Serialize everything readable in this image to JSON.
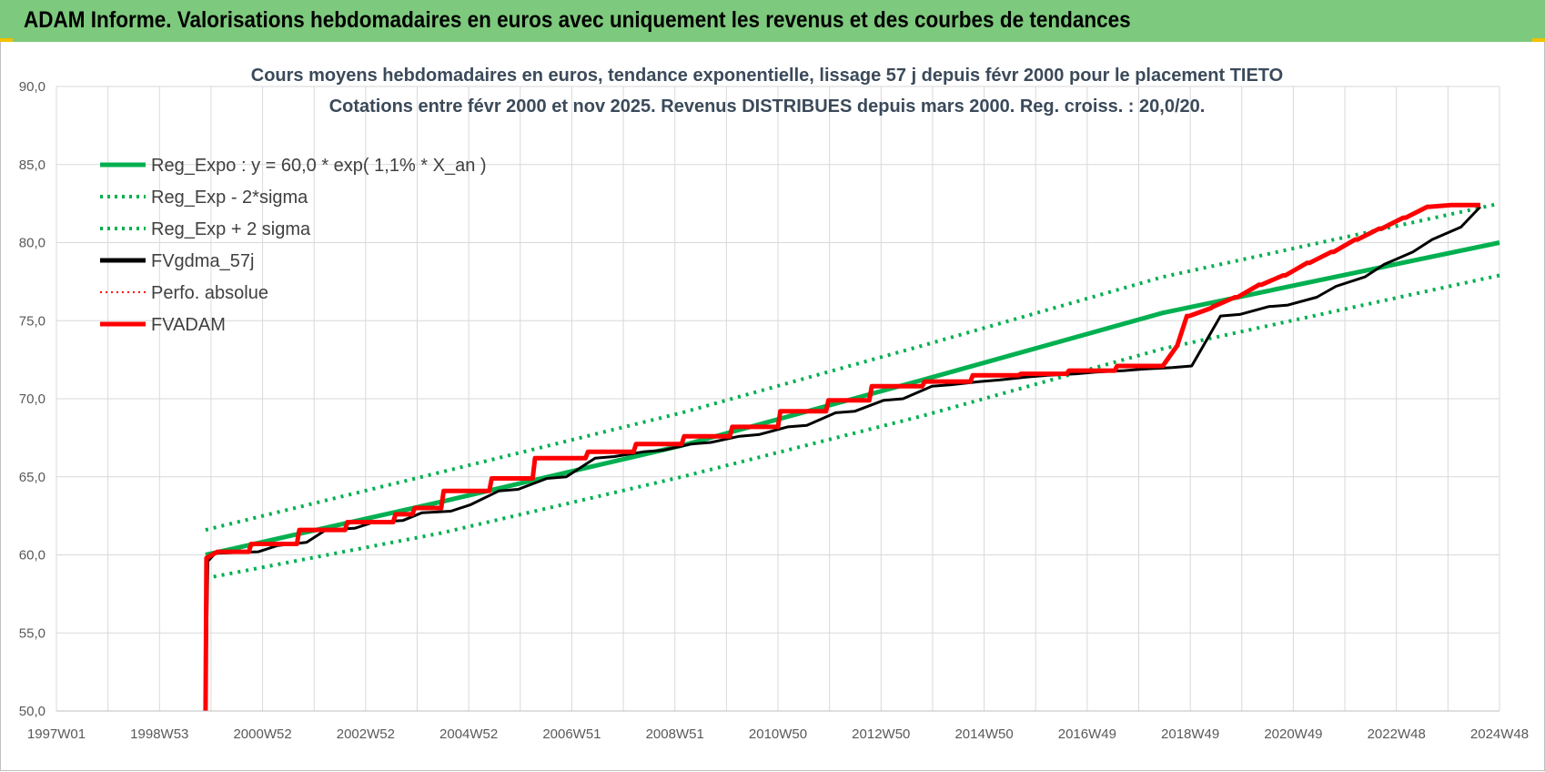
{
  "header": {
    "title": "ADAM Informe. Valorisations hebdomadaires en euros avec uniquement les revenus et des courbes de tendances"
  },
  "colors": {
    "header_bg": "#7dc97d",
    "green": "#00b050",
    "red": "#ff0000",
    "black": "#000000",
    "grid": "#d9d9d9"
  },
  "chart_data": {
    "type": "line",
    "title": "Cours moyens hebdomadaires en euros, tendance exponentielle, lissage 57 j depuis févr 2000 pour le placement TIETO",
    "subtitle": "Cotations entre févr 2000 et nov 2025. Revenus DISTRIBUES depuis mars 2000. Reg. croiss. : 20,0/20.",
    "xlabel": "",
    "ylabel": "",
    "x_range": [
      1997.0,
      2027.0
    ],
    "ylim": [
      50,
      90
    ],
    "y_ticks": [
      "50,0",
      "55,0",
      "60,0",
      "65,0",
      "70,0",
      "75,0",
      "80,0",
      "85,0",
      "90,0"
    ],
    "x_tick_labels": [
      "1997W01",
      "1998W53",
      "2000W52",
      "2002W52",
      "2004W52",
      "2006W51",
      "2008W51",
      "2010W50",
      "2012W50",
      "2014W50",
      "2016W49",
      "2018W49",
      "2020W49",
      "2022W48",
      "2024W48"
    ],
    "grid": true,
    "legend_position": "top-left",
    "legend": [
      {
        "label": "Reg_Expo : y = 60,0 * exp( 1,1% *  X_an )",
        "color": "#00b050",
        "style": "solid"
      },
      {
        "label": "Reg_Exp - 2*sigma",
        "color": "#00b050",
        "style": "dotted"
      },
      {
        "label": "Reg_Exp + 2 sigma",
        "color": "#00b050",
        "style": "dotted"
      },
      {
        "label": "FVgdma_57j",
        "color": "#000000",
        "style": "solid"
      },
      {
        "label": "Perfo. absolue",
        "color": "#ff0000",
        "style": "dotted"
      },
      {
        "label": "FVADAM",
        "color": "#ff0000",
        "style": "solid"
      }
    ],
    "series": [
      {
        "name": "Reg_Expo : y = 60,0 * exp( 1,1% *  X_an )",
        "x": [
          2000.1,
          2005.0,
          2010.0,
          2015.0,
          2020.0,
          2027.0
        ],
        "values": [
          60.0,
          63.4,
          67.0,
          71.2,
          75.5,
          80.0
        ]
      },
      {
        "name": "Reg_Exp - 2*sigma",
        "x": [
          2000.1,
          2005.0,
          2010.0,
          2015.0,
          2020.0,
          2027.0
        ],
        "values": [
          58.5,
          61.4,
          65.0,
          68.9,
          73.2,
          77.9
        ]
      },
      {
        "name": "Reg_Exp + 2 sigma",
        "x": [
          2000.1,
          2005.0,
          2010.0,
          2015.0,
          2020.0,
          2027.0
        ],
        "values": [
          61.6,
          65.3,
          69.1,
          73.4,
          77.8,
          82.5
        ]
      },
      {
        "name": "FVgdma_57j",
        "x": [
          2000.1,
          2000.15,
          2000.3,
          2001.2,
          2001.6,
          2002.2,
          2002.6,
          2003.2,
          2003.6,
          2004.2,
          2004.6,
          2005.2,
          2005.6,
          2006.2,
          2006.6,
          2007.2,
          2007.6,
          2008.2,
          2008.6,
          2009.2,
          2009.6,
          2010.2,
          2010.6,
          2011.2,
          2011.6,
          2012.2,
          2012.6,
          2013.2,
          2013.6,
          2014.2,
          2014.6,
          2015.2,
          2015.6,
          2016.2,
          2016.6,
          2017.2,
          2017.6,
          2018.2,
          2018.6,
          2019.2,
          2019.6,
          2020.2,
          2020.6,
          2021.2,
          2021.6,
          2022.2,
          2022.6,
          2023.2,
          2023.6,
          2024.2,
          2024.6,
          2025.2,
          2025.6,
          2026.2,
          2026.6
        ],
        "values": [
          50.0,
          59.6,
          60.1,
          60.2,
          60.6,
          60.8,
          61.6,
          61.7,
          62.1,
          62.2,
          62.7,
          62.8,
          63.2,
          64.1,
          64.2,
          64.9,
          65.0,
          66.2,
          66.3,
          66.6,
          66.7,
          67.1,
          67.2,
          67.6,
          67.7,
          68.2,
          68.3,
          69.1,
          69.2,
          69.9,
          70.0,
          70.8,
          70.9,
          71.1,
          71.2,
          71.4,
          71.5,
          71.6,
          71.7,
          71.8,
          71.9,
          72.0,
          72.1,
          75.3,
          75.4,
          75.9,
          76.0,
          76.5,
          77.2,
          77.8,
          78.6,
          79.4,
          80.2,
          81.0,
          82.3
        ]
      },
      {
        "name": "FVADAM",
        "x": [
          2000.1,
          2000.12,
          2000.35,
          2001.0,
          2001.05,
          2002.0,
          2002.05,
          2003.0,
          2003.05,
          2004.0,
          2004.05,
          2004.4,
          2004.45,
          2005.0,
          2005.05,
          2006.0,
          2006.05,
          2006.9,
          2006.95,
          2008.0,
          2008.05,
          2009.0,
          2009.05,
          2010.0,
          2010.05,
          2011.0,
          2011.05,
          2012.0,
          2012.05,
          2013.0,
          2013.05,
          2013.9,
          2013.95,
          2015.0,
          2015.05,
          2016.0,
          2016.05,
          2017.0,
          2017.05,
          2018.0,
          2018.05,
          2019.0,
          2019.05,
          2020.0,
          2020.3,
          2020.5,
          2020.55,
          2021.0,
          2021.05,
          2021.5,
          2021.55,
          2022.0,
          2022.05,
          2022.5,
          2022.55,
          2023.0,
          2023.05,
          2023.5,
          2023.55,
          2024.0,
          2024.05,
          2024.5,
          2024.55,
          2025.0,
          2025.05,
          2025.5,
          2025.55,
          2026.0,
          2026.05,
          2026.6
        ],
        "values": [
          50.0,
          59.8,
          60.2,
          60.2,
          60.7,
          60.7,
          61.6,
          61.6,
          62.1,
          62.1,
          62.6,
          62.6,
          63.0,
          63.0,
          64.1,
          64.1,
          64.9,
          64.9,
          66.2,
          66.2,
          66.6,
          66.6,
          67.1,
          67.1,
          67.6,
          67.6,
          68.2,
          68.2,
          69.2,
          69.2,
          69.9,
          69.9,
          70.8,
          70.8,
          71.1,
          71.1,
          71.5,
          71.5,
          71.6,
          71.6,
          71.8,
          71.8,
          72.1,
          72.1,
          73.4,
          75.3,
          75.3,
          75.8,
          75.9,
          76.5,
          76.5,
          77.3,
          77.3,
          77.9,
          77.9,
          78.7,
          78.7,
          79.4,
          79.4,
          80.2,
          80.2,
          80.9,
          80.9,
          81.6,
          81.6,
          82.3,
          82.3,
          82.4,
          82.4,
          82.4
        ]
      }
    ]
  }
}
